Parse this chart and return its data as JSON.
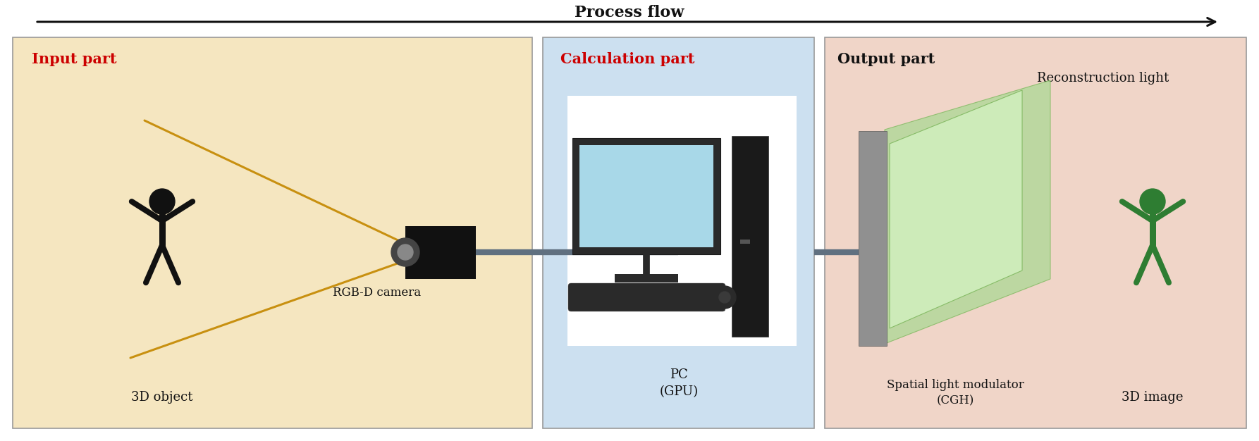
{
  "title": "Process flow",
  "fig_width": 17.86,
  "fig_height": 6.26,
  "dpi": 100,
  "bg_color": "#ffffff",
  "box_input_color": "#f5e6c0",
  "box_calc_color": "#cce0f0",
  "box_output_color": "#f0d5c8",
  "box_border_color": "#999999",
  "label_input": "Input part",
  "label_calc": "Calculation part",
  "label_output": "Output part",
  "label_3d_object": "3D object",
  "label_camera": "RGB-D camera",
  "label_pc": "PC\n(GPU)",
  "label_slm": "Spatial light modulator\n(CGH)",
  "label_3d_image": "3D image",
  "label_recon": "Reconstruction light",
  "red": "#cc0000",
  "black": "#111111",
  "green_person": "#2e7d32",
  "arrow_color": "#111111",
  "connector_color": "#607080",
  "ray_color": "#c89010",
  "slm_gray": "#888888",
  "slm_green_back": "#b8dca0",
  "slm_green_front": "#d0ecc0",
  "white": "#ffffff"
}
